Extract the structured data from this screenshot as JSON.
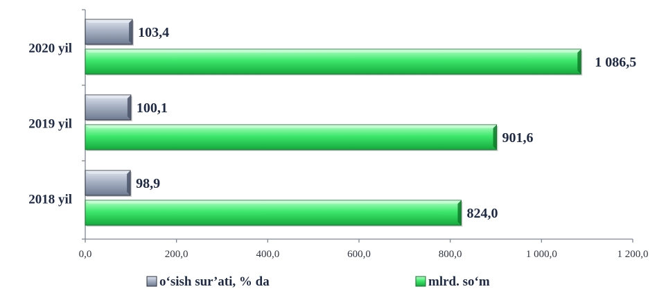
{
  "chart_data": {
    "type": "bar",
    "orientation": "horizontal",
    "categories": [
      "2018 yil",
      "2019 yil",
      "2020 yil"
    ],
    "series": [
      {
        "name": "o‘sish sur’ati, % da",
        "values": [
          98.9,
          100.1,
          103.4
        ],
        "labels": [
          "98,9",
          "100,1",
          "103,4"
        ],
        "color": "#9aa5b8"
      },
      {
        "name": "mlrd. so‘m",
        "values": [
          824.0,
          901.6,
          1086.5
        ],
        "labels": [
          "824,0",
          "901,6",
          "1 086,5"
        ],
        "color": "#3ee86c"
      }
    ],
    "xlim": [
      0,
      1200
    ],
    "xticks": [
      0,
      200,
      400,
      600,
      800,
      1000,
      1200
    ],
    "xtick_labels": [
      "0,0",
      "200,0",
      "400,0",
      "600,0",
      "800,0",
      "1 000,0",
      "1 200,0"
    ],
    "legend_position": "bottom",
    "grid": false,
    "title": "",
    "xlabel": "",
    "ylabel": ""
  }
}
